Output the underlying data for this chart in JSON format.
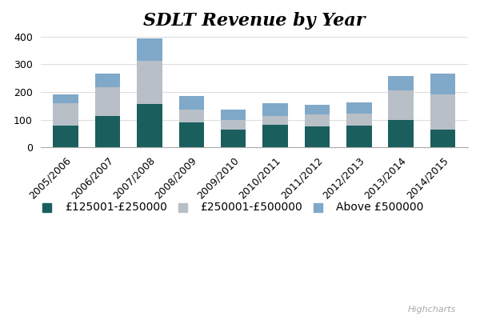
{
  "title": "SDLT Revenue by Year",
  "categories": [
    "2005/2006",
    "2006/2007",
    "2007/2008",
    "2008/2009",
    "2009/2010",
    "2010/2011",
    "2011/2012",
    "2012/2013",
    "2013/2014",
    "2014/2015"
  ],
  "series": [
    {
      "name": "£125001-£250000",
      "color": "#1a5e5e",
      "values": [
        78,
        115,
        157,
        90,
        65,
        82,
        75,
        78,
        100,
        65
      ]
    },
    {
      "name": "£250001-£500000",
      "color": "#b8bfc7",
      "values": [
        83,
        103,
        155,
        47,
        35,
        31,
        43,
        43,
        107,
        128
      ]
    },
    {
      "name": "Above £500000",
      "color": "#7fa8c9",
      "values": [
        30,
        50,
        82,
        50,
        37,
        48,
        37,
        42,
        50,
        75
      ]
    }
  ],
  "ylim": [
    0,
    400
  ],
  "yticks": [
    0,
    100,
    200,
    300,
    400
  ],
  "background_color": "#ffffff",
  "grid_color": "#dddddd",
  "title_fontsize": 16,
  "watermark": "Highcharts",
  "legend_fontsize": 10,
  "tick_fontsize": 9
}
